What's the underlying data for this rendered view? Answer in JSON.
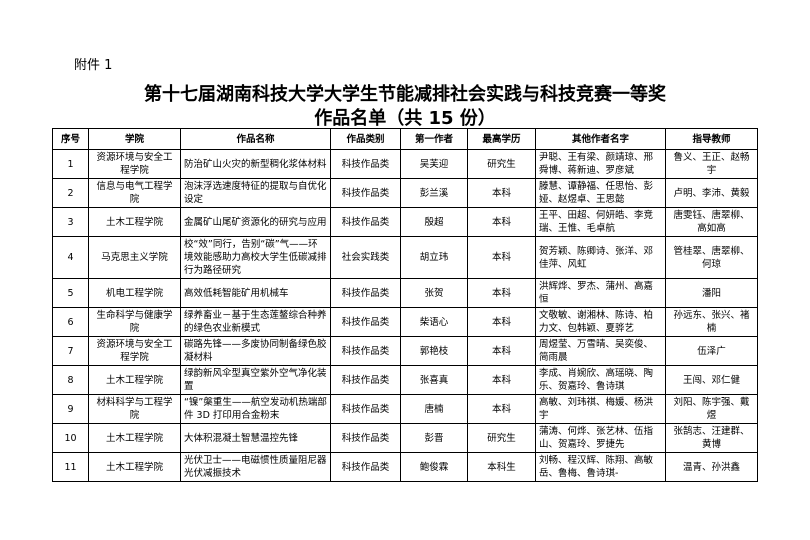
{
  "header": {
    "attachment": "附件 1",
    "title": "第十七届湖南科技大学大学生节能减排社会实践与科技竞赛一等奖",
    "subtitle": "作品名单（共 15 份）"
  },
  "table": {
    "headers": [
      "序号",
      "学院",
      "作品名称",
      "作品类别",
      "第一作者",
      "最高学历",
      "其他作者名字",
      "指导教师"
    ],
    "rows": [
      [
        "1",
        "资源环境与安全工程学院",
        "防治矿山火灾的新型稠化浆体材料",
        "科技作品类",
        "吴芙迎",
        "研究生",
        "尹聪、王有梁、颜靖琼、邢舜博、蒋新迪、罗彦斌",
        "鲁义、王正、赵畅宇"
      ],
      [
        "2",
        "信息与电气工程学院",
        "泡沫浮选速度特征的提取与自优化设定",
        "科技作品类",
        "彭兰溪",
        "本科",
        "滕慧、谭静福、任思怡、彭娅、赵煜卓、王思懿",
        "卢明、李沛、黄毅"
      ],
      [
        "3",
        "土木工程学院",
        "金属矿山尾矿资源化的研究与应用",
        "科技作品类",
        "殷超",
        "本科",
        "王平、田超、何妍皓、李竞瑞、王惟、毛卓航",
        "唐雯钰、唐翠柳、高如高"
      ],
      [
        "4",
        "马克思主义学院",
        "校“效”同行，告别“碳”气——环境效能感助力高校大学生低碳减排行为路径研究",
        "社会实践类",
        "胡立玮",
        "本科",
        "贺芳颖、陈卿诗、张洋、邓佳萍、风虹",
        "管桂翠、唐翠柳、何琼"
      ],
      [
        "5",
        "机电工程学院",
        "高效低耗智能矿用机械车",
        "科技作品类",
        "张贺",
        "本科",
        "洪辉烨、罗杰、蒲州、高嘉恒",
        "潘阳"
      ],
      [
        "6",
        "生命科学与健康学院",
        "绿养畜业－基于生态莲鳌综合种养的绿色农业新模式",
        "科技作品类",
        "柴语心",
        "本科",
        "文敬敏、谢湘林、陈诗、柏力文、包韩颖、夏骅艺",
        "孙远东、张兴、褚楠"
      ],
      [
        "7",
        "资源环境与安全工程学院",
        "碳路先锋——多废协同制备绿色胶凝材料",
        "科技作品类",
        "郭艳枝",
        "本科",
        "周煜莹、万雪晴、吴奕俊、简雨晨",
        "伍泽广"
      ],
      [
        "8",
        "土木工程学院",
        "绿韵新风伞型真空紫外空气净化装置",
        "科技作品类",
        "张喜真",
        "本科",
        "李成、肖婉欣、高瑶晓、陶乐、贺嘉玲、鲁诗琪",
        "王闯、邓仁健"
      ],
      [
        "9",
        "材料科学与工程学院",
        "“镍”槃重生——航空发动机热端部件 3D 打印用合金粉末",
        "科技作品类",
        "唐楠",
        "本科",
        "高敏、刘玮祺、梅媛、杨洪宇",
        "刘阳、陈宇强、戴煜"
      ],
      [
        "10",
        "土木工程学院",
        "大体积混凝土智慧温控先锋",
        "科技作品类",
        "彭晋",
        "研究生",
        "蒲涛、何烨、张艺林、伍指山、贺嘉玲、罗捷先",
        "张鹄志、汪建群、黄博"
      ],
      [
        "11",
        "土木工程学院",
        "光伏卫士——电磁惯性质量阻尼器光伏减振技术",
        "科技作品类",
        "鲍俊霖",
        "本科生",
        "刘畅、程汉辉、陈翔、高敏岳、鲁梅、鲁诗琪-",
        "温青、孙洪鑫"
      ]
    ]
  }
}
